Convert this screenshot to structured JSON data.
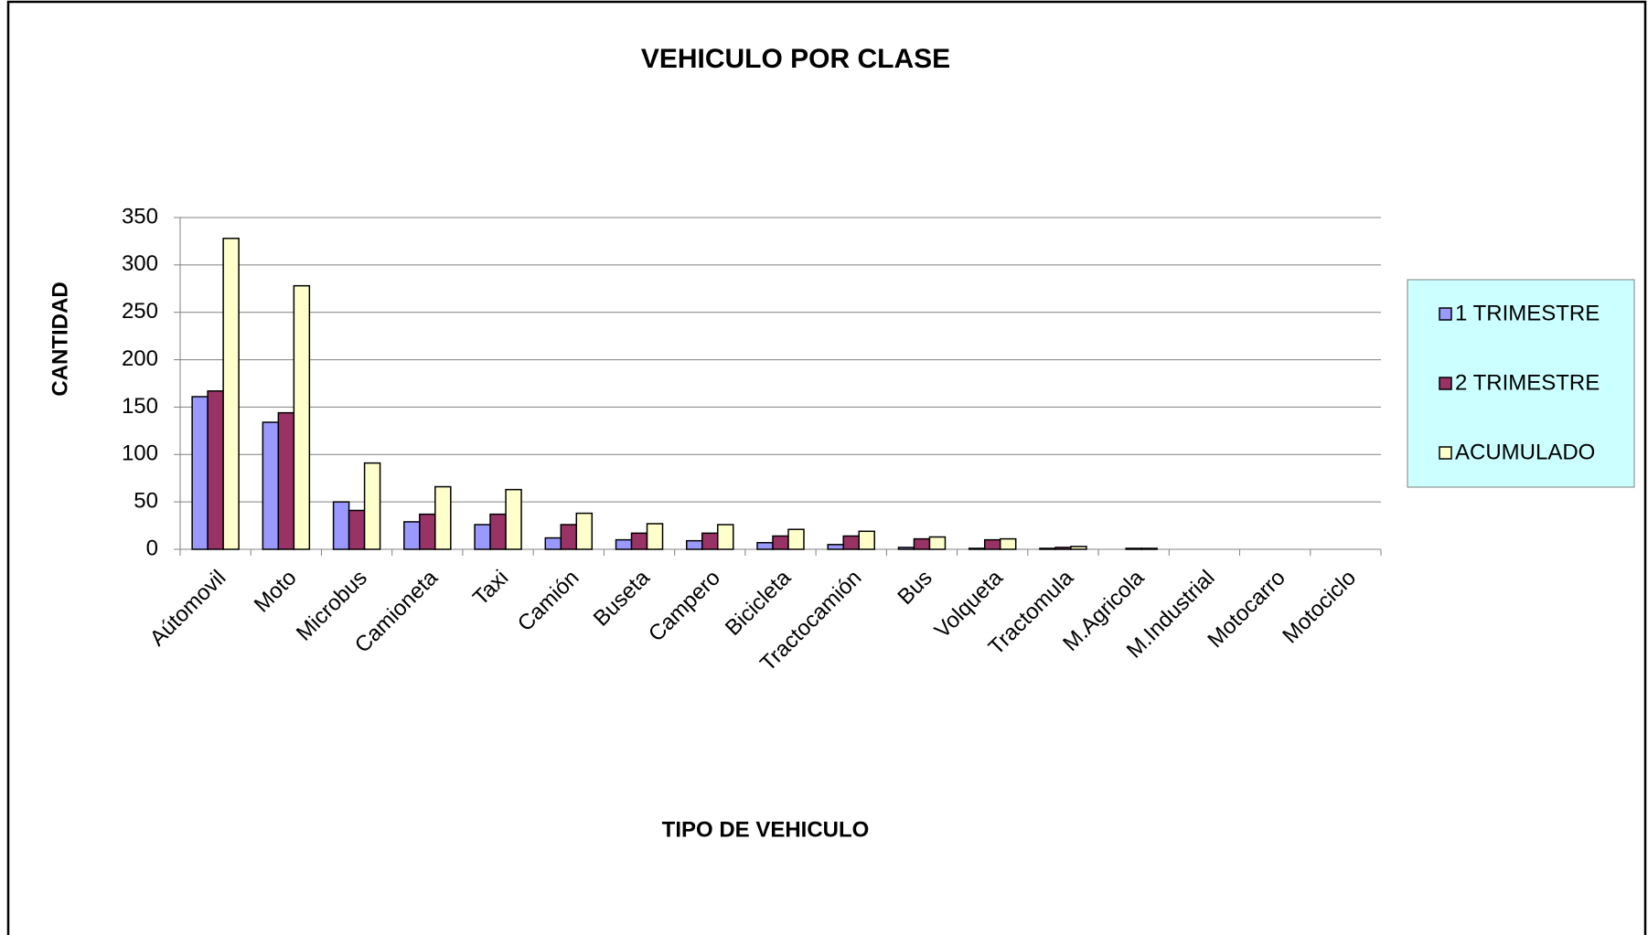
{
  "chart_data": {
    "type": "bar",
    "title": "VEHICULO POR CLASE",
    "x_label": "TIPO DE VEHICULO",
    "y_label": "CANTIDAD",
    "categories": [
      "Aútomovil",
      "Moto",
      "Microbus",
      "Camioneta",
      "Taxi",
      "Camión",
      "Buseta",
      "Campero",
      "Bicicleta",
      "Tractocamión",
      "Bus",
      "Volqueta",
      "Tractomula",
      "M.Agricola",
      "M.Industrial",
      "Motocarro",
      "Motociclo"
    ],
    "series": [
      {
        "name": "1 TRIMESTRE",
        "color": "#9999ff",
        "values": [
          161,
          134,
          50,
          29,
          26,
          12,
          10,
          9,
          7,
          5,
          2,
          1,
          1,
          0,
          0,
          0,
          0
        ]
      },
      {
        "name": "2 TRIMESTRE",
        "color": "#993366",
        "values": [
          167,
          144,
          41,
          37,
          37,
          26,
          17,
          17,
          14,
          14,
          11,
          10,
          2,
          1,
          0,
          0,
          0
        ]
      },
      {
        "name": "ACUMULADO",
        "color": "#ffffcc",
        "values": [
          328,
          278,
          91,
          66,
          63,
          38,
          27,
          26,
          21,
          19,
          13,
          11,
          3,
          1,
          0,
          0,
          0
        ]
      }
    ],
    "ylim": [
      0,
      350
    ],
    "yticks": [
      0,
      50,
      100,
      150,
      200,
      250,
      300,
      350
    ],
    "grid": true,
    "legend": "right"
  }
}
